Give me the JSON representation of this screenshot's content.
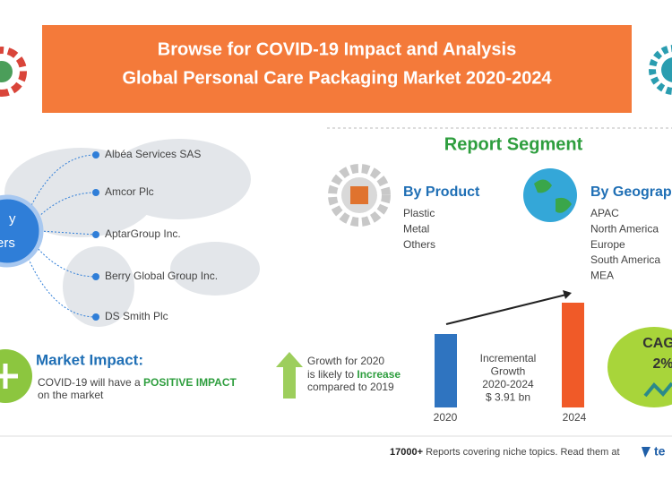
{
  "header": {
    "title": "Browse for COVID-19 Impact and Analysis",
    "subtitle": "Global Personal Care Packaging Market 2020-2024"
  },
  "vendors": {
    "badge_lines": [
      "y",
      "ers"
    ],
    "items": [
      "Albéa Services SAS",
      "Amcor Plc",
      "AptarGroup Inc.",
      "Berry Global Group Inc.",
      "DS Smith Plc"
    ]
  },
  "report_segment": {
    "title": "Report Segment",
    "product": {
      "title": "By Product",
      "items": [
        "Plastic",
        "Metal",
        "Others"
      ]
    },
    "geography": {
      "title": "By Geograp",
      "items": [
        "APAC",
        "North America",
        "Europe",
        "South America",
        "MEA"
      ]
    }
  },
  "growth": {
    "start_year": "2020",
    "end_year": "2024",
    "label_lines": [
      "Incremental",
      "Growth",
      "2020-2024",
      "$ 3.91 bn"
    ],
    "cagr_label": "CAG",
    "cagr_value": "2%"
  },
  "market_impact": {
    "title": "Market Impact:",
    "text_before": "COVID-19 will have a ",
    "highlight": "POSITIVE IMPACT",
    "text_after": "on the market"
  },
  "growth_2020": {
    "line1": "Growth for 2020",
    "line2_before": "is likely to ",
    "line2_highlight": "Increase",
    "line3": "compared to 2019"
  },
  "footer": {
    "count": "17000+",
    "text": " Reports covering niche topics. Read them at",
    "logo": "te"
  }
}
